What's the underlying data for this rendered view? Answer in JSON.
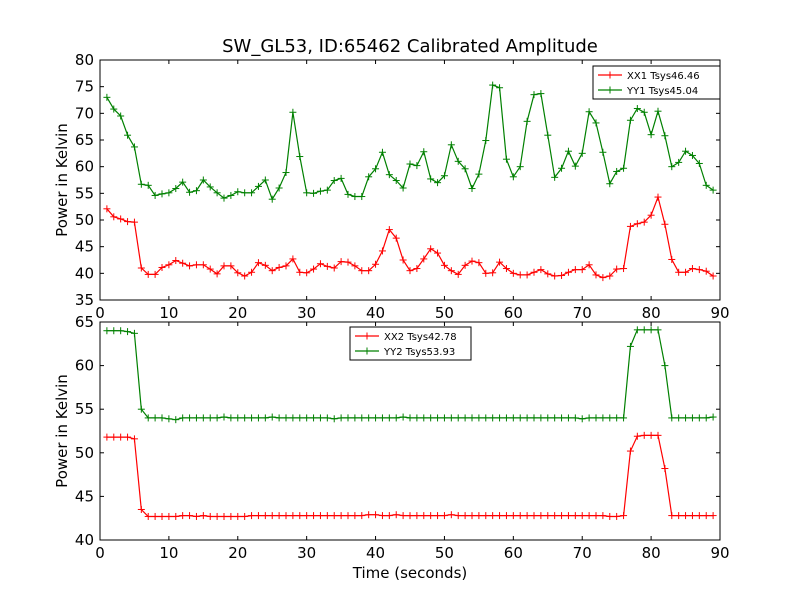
{
  "figure": {
    "title": "SW_GL53, ID:65462 Calibrated Amplitude"
  },
  "chart_data": [
    {
      "type": "line",
      "title": "SW_GL53, ID:65462 Calibrated Amplitude",
      "xlabel": "",
      "ylabel": "Power in Kelvin",
      "xlim": [
        0,
        90
      ],
      "ylim": [
        35,
        80
      ],
      "xticks": [
        "0",
        "10",
        "20",
        "30",
        "40",
        "50",
        "60",
        "70",
        "80",
        "90"
      ],
      "yticks": [
        "35",
        "40",
        "45",
        "50",
        "55",
        "60",
        "65",
        "70",
        "75",
        "80"
      ],
      "grid": false,
      "legend_position": "top-right",
      "x": [
        1,
        2,
        3,
        4,
        5,
        6,
        7,
        8,
        9,
        10,
        11,
        12,
        13,
        14,
        15,
        16,
        17,
        18,
        19,
        20,
        21,
        22,
        23,
        24,
        25,
        26,
        27,
        28,
        29,
        30,
        31,
        32,
        33,
        34,
        35,
        36,
        37,
        38,
        39,
        40,
        41,
        42,
        43,
        44,
        45,
        46,
        47,
        48,
        49,
        50,
        51,
        52,
        53,
        54,
        55,
        56,
        57,
        58,
        59,
        60,
        61,
        62,
        63,
        64,
        65,
        66,
        67,
        68,
        69,
        70,
        71,
        72,
        73,
        74,
        75,
        76,
        77,
        78,
        79,
        80,
        81,
        82,
        83,
        84,
        85,
        86,
        87,
        88,
        89
      ],
      "series": [
        {
          "name": "XX1 Tsys46.46",
          "color": "#ff0000",
          "values": [
            52.1,
            50.6,
            50.2,
            49.7,
            49.6,
            41.0,
            39.8,
            39.8,
            41.1,
            41.6,
            42.4,
            41.9,
            41.4,
            41.6,
            41.6,
            40.8,
            39.9,
            41.4,
            41.4,
            40.1,
            39.5,
            40.2,
            42.0,
            41.5,
            40.5,
            41.1,
            41.4,
            42.7,
            40.2,
            40.1,
            40.8,
            41.8,
            41.3,
            41.0,
            42.2,
            42.1,
            41.4,
            40.5,
            40.5,
            41.7,
            44.2,
            48.2,
            46.6,
            42.5,
            40.5,
            40.9,
            42.7,
            44.6,
            43.8,
            41.5,
            40.5,
            39.8,
            41.5,
            42.3,
            42.0,
            40.0,
            40.1,
            42.1,
            40.9,
            40.0,
            39.7,
            39.7,
            40.2,
            40.7,
            39.9,
            39.5,
            39.6,
            40.2,
            40.7,
            40.7,
            41.6,
            39.7,
            39.2,
            39.5,
            40.8,
            40.9,
            48.8,
            49.3,
            49.6,
            50.9,
            54.3,
            49.2,
            42.6,
            40.2,
            40.2,
            40.9,
            40.7,
            40.4,
            39.5
          ]
        },
        {
          "name": "YY1 Tsys45.04",
          "color": "#008000",
          "values": [
            73.0,
            70.8,
            69.5,
            65.9,
            63.7,
            56.7,
            56.5,
            54.6,
            54.9,
            55.1,
            55.9,
            57.1,
            55.2,
            55.5,
            57.5,
            56.2,
            55.1,
            54.1,
            54.6,
            55.3,
            55.1,
            55.1,
            56.3,
            57.5,
            53.9,
            56.0,
            58.9,
            70.2,
            61.9,
            55.1,
            55.0,
            55.4,
            55.6,
            57.4,
            57.8,
            54.8,
            54.4,
            54.4,
            58.1,
            59.6,
            62.7,
            58.5,
            57.4,
            56.0,
            60.5,
            60.2,
            62.8,
            57.7,
            57.0,
            58.3,
            64.1,
            61.0,
            59.6,
            55.9,
            58.6,
            64.9,
            75.3,
            74.8,
            61.4,
            58.1,
            60.0,
            68.5,
            73.5,
            73.7,
            65.9,
            58.0,
            59.7,
            62.9,
            60.1,
            62.5,
            70.3,
            68.2,
            62.7,
            56.8,
            59.1,
            59.7,
            68.7,
            70.9,
            70.2,
            66.0,
            70.4,
            65.8,
            60.0,
            60.8,
            62.9,
            62.1,
            60.6,
            56.5,
            55.6
          ]
        }
      ]
    },
    {
      "type": "line",
      "title": "",
      "xlabel": "Time (seconds)",
      "ylabel": "Power in Kelvin",
      "xlim": [
        0,
        90
      ],
      "ylim": [
        40,
        65
      ],
      "xticks": [
        "0",
        "10",
        "20",
        "30",
        "40",
        "50",
        "60",
        "70",
        "80",
        "90"
      ],
      "yticks": [
        "40",
        "45",
        "50",
        "55",
        "60",
        "65"
      ],
      "grid": false,
      "legend_position": "top-center",
      "x": [
        1,
        2,
        3,
        4,
        5,
        6,
        7,
        8,
        9,
        10,
        11,
        12,
        13,
        14,
        15,
        16,
        17,
        18,
        19,
        20,
        21,
        22,
        23,
        24,
        25,
        26,
        27,
        28,
        29,
        30,
        31,
        32,
        33,
        34,
        35,
        36,
        37,
        38,
        39,
        40,
        41,
        42,
        43,
        44,
        45,
        46,
        47,
        48,
        49,
        50,
        51,
        52,
        53,
        54,
        55,
        56,
        57,
        58,
        59,
        60,
        61,
        62,
        63,
        64,
        65,
        66,
        67,
        68,
        69,
        70,
        71,
        72,
        73,
        74,
        75,
        76,
        77,
        78,
        79,
        80,
        81,
        82,
        83,
        84,
        85,
        86,
        87,
        88,
        89
      ],
      "series": [
        {
          "name": "XX2 Tsys42.78",
          "color": "#ff0000",
          "values": [
            51.8,
            51.8,
            51.8,
            51.8,
            51.6,
            43.5,
            42.7,
            42.7,
            42.7,
            42.7,
            42.7,
            42.8,
            42.8,
            42.7,
            42.8,
            42.7,
            42.7,
            42.7,
            42.7,
            42.7,
            42.7,
            42.8,
            42.8,
            42.8,
            42.8,
            42.8,
            42.8,
            42.8,
            42.8,
            42.8,
            42.8,
            42.8,
            42.8,
            42.8,
            42.8,
            42.8,
            42.8,
            42.8,
            42.9,
            42.9,
            42.8,
            42.8,
            42.9,
            42.8,
            42.8,
            42.8,
            42.8,
            42.8,
            42.8,
            42.8,
            42.9,
            42.8,
            42.8,
            42.8,
            42.8,
            42.8,
            42.8,
            42.8,
            42.8,
            42.8,
            42.8,
            42.8,
            42.8,
            42.8,
            42.8,
            42.8,
            42.8,
            42.8,
            42.8,
            42.8,
            42.8,
            42.8,
            42.8,
            42.7,
            42.7,
            42.8,
            50.2,
            51.9,
            52.0,
            52.0,
            52.0,
            48.2,
            42.8,
            42.8,
            42.8,
            42.8,
            42.8,
            42.8,
            42.8
          ]
        },
        {
          "name": "YY2 Tsys53.93",
          "color": "#008000",
          "values": [
            64.0,
            64.0,
            64.0,
            63.9,
            63.7,
            55.0,
            54.0,
            54.0,
            54.0,
            53.9,
            53.8,
            54.0,
            54.0,
            54.0,
            54.0,
            54.0,
            54.0,
            54.1,
            54.0,
            54.0,
            54.0,
            54.0,
            54.0,
            54.0,
            54.1,
            54.0,
            54.0,
            54.0,
            54.0,
            54.0,
            54.0,
            54.0,
            54.0,
            53.9,
            54.0,
            54.0,
            54.0,
            54.0,
            54.0,
            54.0,
            54.0,
            54.0,
            54.0,
            54.1,
            54.0,
            54.0,
            54.0,
            54.0,
            54.0,
            54.0,
            54.0,
            54.0,
            54.0,
            54.0,
            54.0,
            54.0,
            54.0,
            54.0,
            54.0,
            54.0,
            54.0,
            54.0,
            54.0,
            54.0,
            54.0,
            54.0,
            54.0,
            54.0,
            54.0,
            53.9,
            54.0,
            54.0,
            54.0,
            54.0,
            54.0,
            54.0,
            62.2,
            64.1,
            64.1,
            64.1,
            64.1,
            60.0,
            54.0,
            54.0,
            54.0,
            54.0,
            54.0,
            54.0,
            54.1
          ]
        }
      ]
    }
  ]
}
